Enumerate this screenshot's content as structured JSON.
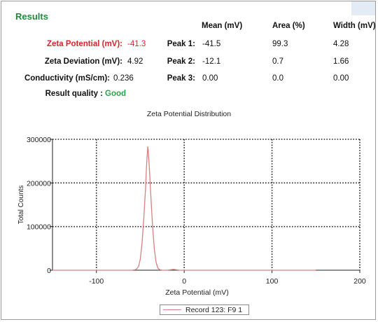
{
  "results": {
    "title": "Results",
    "zeta_potential_label": "Zeta Potential (mV):",
    "zeta_potential_value": "-41.3",
    "zeta_deviation_label": "Zeta Deviation (mV):",
    "zeta_deviation_value": "4.92",
    "conductivity_label": "Conductivity (mS/cm):",
    "conductivity_value": "0.236",
    "quality_label": "Result quality :",
    "quality_value": "Good"
  },
  "peaks": {
    "headers": [
      "Mean (mV)",
      "Area (%)",
      "Width (mV)"
    ],
    "rows": [
      {
        "label": "Peak 1:",
        "mean": "-41.5",
        "area": "99.3",
        "width": "4.28"
      },
      {
        "label": "Peak 2:",
        "mean": "-12.1",
        "area": "0.7",
        "width": "1.66"
      },
      {
        "label": "Peak 3:",
        "mean": "0.00",
        "area": "0.0",
        "width": "0.00"
      }
    ]
  },
  "colors": {
    "title_green": "#1f8a3a",
    "zeta_red": "#d6262b",
    "good_green": "#2aa24a",
    "series_line": "#d98080"
  },
  "chart_data": {
    "type": "line",
    "title": "Zeta Potential Distribution",
    "xlabel": "Zeta Potential (mV)",
    "ylabel": "Total Counts",
    "xlim": [
      -150,
      200
    ],
    "ylim": [
      0,
      300000
    ],
    "xticks": [
      -100,
      0,
      100,
      200
    ],
    "yticks": [
      0,
      100000,
      200000,
      300000
    ],
    "grid": true,
    "legend_position": "bottom-center",
    "series": [
      {
        "name": "Record 123: F9 1",
        "x": [
          -150,
          -60,
          -55,
          -52,
          -50,
          -48,
          -46,
          -44,
          -43,
          -42,
          -41.5,
          -41,
          -40,
          -38,
          -36,
          -34,
          -32,
          -30,
          -28,
          -25,
          -20,
          -12,
          -5,
          0,
          50,
          100,
          150
        ],
        "y": [
          0,
          0,
          1500,
          8000,
          25000,
          62000,
          118000,
          190000,
          235000,
          268000,
          283000,
          276000,
          245000,
          170000,
          100000,
          48000,
          18000,
          5000,
          1500,
          0,
          0,
          2000,
          0,
          0,
          0,
          0,
          0
        ]
      }
    ]
  }
}
